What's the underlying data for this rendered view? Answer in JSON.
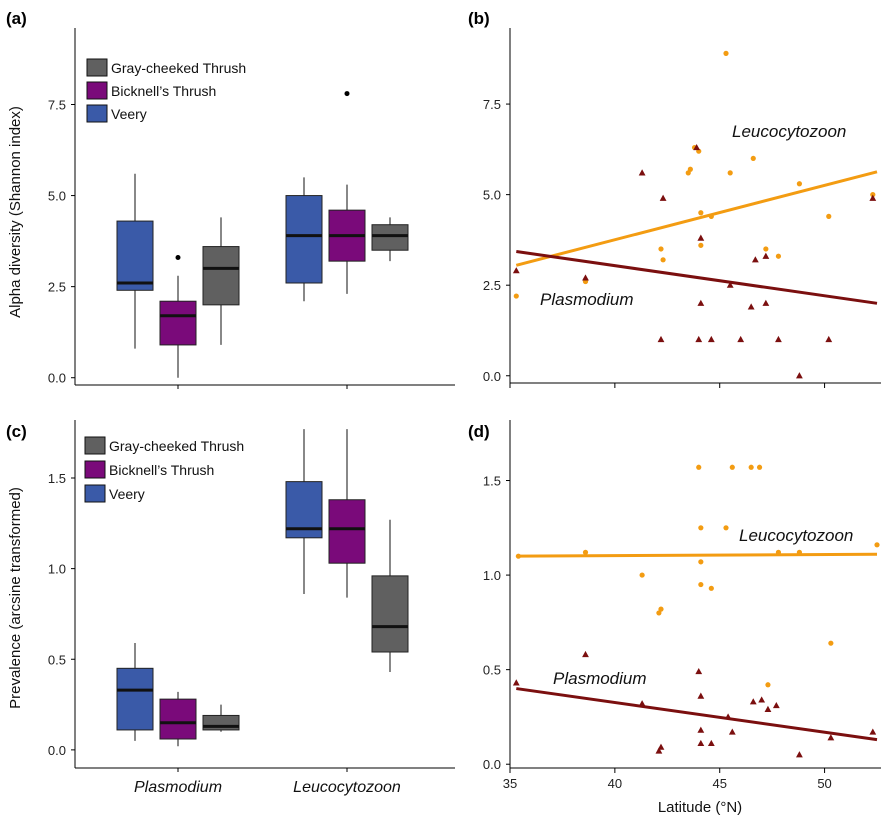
{
  "colors": {
    "veery": "#3a5aa8",
    "bicknell": "#7a0a7a",
    "graycheeked": "#606060",
    "leucocytozoon": "#f39c12",
    "plasmodium": "#7b0f0f"
  },
  "panel_labels": {
    "a": "(a)",
    "b": "(b)",
    "c": "(c)",
    "d": "(d)"
  },
  "shared_x_label": "Latitude (°N)",
  "chart_data": [
    {
      "id": "a",
      "type": "box",
      "ylabel": "Alpha diversity (Shannon index)",
      "ylim": [
        -0.2,
        9.6
      ],
      "yticks": [
        "0.0",
        "2.5",
        "5.0",
        "7.5"
      ],
      "categories": [
        "Plasmodium",
        "Leucocytozoon"
      ],
      "legend": [
        "Gray-cheeked Thrush",
        "Bicknell’s Thrush",
        "Veery"
      ],
      "series": [
        {
          "name": "Veery",
          "boxes": [
            {
              "min": 0.8,
              "q1": 2.4,
              "median": 2.6,
              "q3": 4.3,
              "max": 5.6,
              "outliers": []
            },
            {
              "min": 2.1,
              "q1": 2.6,
              "median": 3.9,
              "q3": 5.0,
              "max": 5.5,
              "outliers": []
            }
          ]
        },
        {
          "name": "Bicknell’s Thrush",
          "boxes": [
            {
              "min": 0.0,
              "q1": 0.9,
              "median": 1.7,
              "q3": 2.1,
              "max": 2.8,
              "outliers": [
                3.3
              ]
            },
            {
              "min": 2.3,
              "q1": 3.2,
              "median": 3.9,
              "q3": 4.6,
              "max": 5.3,
              "outliers": [
                7.8
              ]
            }
          ]
        },
        {
          "name": "Gray-cheeked Thrush",
          "boxes": [
            {
              "min": 0.9,
              "q1": 2.0,
              "median": 3.0,
              "q3": 3.6,
              "max": 4.4,
              "outliers": []
            },
            {
              "min": 3.2,
              "q1": 3.5,
              "median": 3.9,
              "q3": 4.2,
              "max": 4.4,
              "outliers": []
            }
          ]
        }
      ]
    },
    {
      "id": "b",
      "type": "scatter",
      "xlim": [
        35,
        52.5
      ],
      "ylim": [
        -0.2,
        9.6
      ],
      "yticks": [
        "0.0",
        "2.5",
        "5.0",
        "7.5"
      ],
      "series": [
        {
          "name": "Leucocytozoon",
          "marker": "circle",
          "points": [
            [
              35.3,
              2.2
            ],
            [
              38.6,
              2.6
            ],
            [
              42.2,
              3.5
            ],
            [
              42.3,
              3.2
            ],
            [
              43.5,
              5.6
            ],
            [
              43.6,
              5.7
            ],
            [
              43.8,
              6.3
            ],
            [
              44.0,
              6.2
            ],
            [
              44.1,
              4.5
            ],
            [
              44.1,
              3.6
            ],
            [
              44.6,
              4.4
            ],
            [
              45.3,
              8.9
            ],
            [
              45.5,
              5.6
            ],
            [
              46.6,
              6.0
            ],
            [
              47.2,
              3.5
            ],
            [
              47.8,
              3.3
            ],
            [
              48.8,
              5.3
            ],
            [
              50.2,
              4.4
            ],
            [
              52.3,
              5.0
            ]
          ],
          "fit": [
            [
              35.3,
              3.05
            ],
            [
              52.5,
              5.63
            ]
          ]
        },
        {
          "name": "Plasmodium",
          "marker": "triangle",
          "points": [
            [
              35.3,
              2.9
            ],
            [
              38.6,
              2.7
            ],
            [
              41.3,
              5.6
            ],
            [
              42.2,
              1.0
            ],
            [
              42.3,
              4.9
            ],
            [
              43.9,
              6.3
            ],
            [
              44.0,
              1.0
            ],
            [
              44.1,
              2.0
            ],
            [
              44.6,
              1.0
            ],
            [
              44.1,
              3.8
            ],
            [
              45.5,
              2.5
            ],
            [
              46.0,
              1.0
            ],
            [
              46.5,
              1.9
            ],
            [
              46.7,
              3.2
            ],
            [
              47.2,
              3.3
            ],
            [
              47.2,
              2.0
            ],
            [
              47.8,
              1.0
            ],
            [
              48.8,
              0.0
            ],
            [
              50.2,
              1.0
            ],
            [
              52.3,
              4.9
            ]
          ],
          "fit": [
            [
              35.3,
              3.43
            ],
            [
              52.5,
              2.0
            ]
          ]
        }
      ],
      "annotations": [
        "Leucocytozoon",
        "Plasmodium"
      ]
    },
    {
      "id": "c",
      "type": "box",
      "ylabel": "Prevalence (arcsine transformed)",
      "ylim": [
        -0.1,
        1.82
      ],
      "yticks": [
        "0.0",
        "0.5",
        "1.0",
        "1.5"
      ],
      "categories": [
        "Plasmodium",
        "Leucocytozoon"
      ],
      "legend": [
        "Gray-cheeked Thrush",
        "Bicknell’s Thrush",
        "Veery"
      ],
      "series": [
        {
          "name": "Veery",
          "boxes": [
            {
              "min": 0.05,
              "q1": 0.11,
              "median": 0.33,
              "q3": 0.45,
              "max": 0.59,
              "outliers": []
            },
            {
              "min": 0.86,
              "q1": 1.17,
              "median": 1.22,
              "q3": 1.48,
              "max": 1.77,
              "outliers": []
            }
          ]
        },
        {
          "name": "Bicknell’s Thrush",
          "boxes": [
            {
              "min": 0.02,
              "q1": 0.06,
              "median": 0.15,
              "q3": 0.28,
              "max": 0.32,
              "outliers": []
            },
            {
              "min": 0.84,
              "q1": 1.03,
              "median": 1.22,
              "q3": 1.38,
              "max": 1.77,
              "outliers": []
            }
          ]
        },
        {
          "name": "Gray-cheeked Thrush",
          "boxes": [
            {
              "min": 0.1,
              "q1": 0.11,
              "median": 0.13,
              "q3": 0.19,
              "max": 0.25,
              "outliers": []
            },
            {
              "min": 0.43,
              "q1": 0.54,
              "median": 0.68,
              "q3": 0.96,
              "max": 1.27,
              "outliers": []
            }
          ]
        }
      ]
    },
    {
      "id": "d",
      "type": "scatter",
      "xlabel": "Latitude (°N)",
      "xlim": [
        35,
        52.5
      ],
      "ylim": [
        -0.02,
        1.82
      ],
      "xticks": [
        "35",
        "40",
        "45",
        "50"
      ],
      "yticks": [
        "0.0",
        "0.5",
        "1.0",
        "1.5"
      ],
      "series": [
        {
          "name": "Leucocytozoon",
          "marker": "circle",
          "points": [
            [
              35.4,
              1.1
            ],
            [
              38.6,
              1.12
            ],
            [
              41.3,
              1.0
            ],
            [
              42.1,
              0.8
            ],
            [
              42.2,
              0.82
            ],
            [
              44.0,
              1.57
            ],
            [
              44.1,
              1.25
            ],
            [
              44.1,
              0.95
            ],
            [
              44.1,
              1.07
            ],
            [
              44.6,
              0.93
            ],
            [
              45.6,
              1.57
            ],
            [
              46.5,
              1.57
            ],
            [
              46.9,
              1.57
            ],
            [
              45.3,
              1.25
            ],
            [
              47.3,
              0.42
            ],
            [
              47.8,
              1.12
            ],
            [
              48.8,
              1.12
            ],
            [
              50.3,
              0.64
            ],
            [
              52.5,
              1.16
            ]
          ],
          "fit": [
            [
              35.4,
              1.1
            ],
            [
              52.5,
              1.11
            ]
          ]
        },
        {
          "name": "Plasmodium",
          "marker": "triangle",
          "points": [
            [
              35.3,
              0.43
            ],
            [
              38.6,
              0.58
            ],
            [
              41.3,
              0.32
            ],
            [
              42.1,
              0.07
            ],
            [
              42.2,
              0.09
            ],
            [
              44.0,
              0.49
            ],
            [
              44.1,
              0.18
            ],
            [
              44.1,
              0.11
            ],
            [
              44.6,
              0.11
            ],
            [
              44.1,
              0.36
            ],
            [
              45.4,
              0.25
            ],
            [
              45.6,
              0.17
            ],
            [
              46.6,
              0.33
            ],
            [
              47.0,
              0.34
            ],
            [
              47.3,
              0.29
            ],
            [
              47.7,
              0.31
            ],
            [
              48.8,
              0.05
            ],
            [
              50.3,
              0.14
            ],
            [
              52.3,
              0.17
            ]
          ],
          "fit": [
            [
              35.3,
              0.4
            ],
            [
              52.5,
              0.13
            ]
          ]
        }
      ],
      "annotations": [
        "Leucocytozoon",
        "Plasmodium"
      ]
    }
  ]
}
